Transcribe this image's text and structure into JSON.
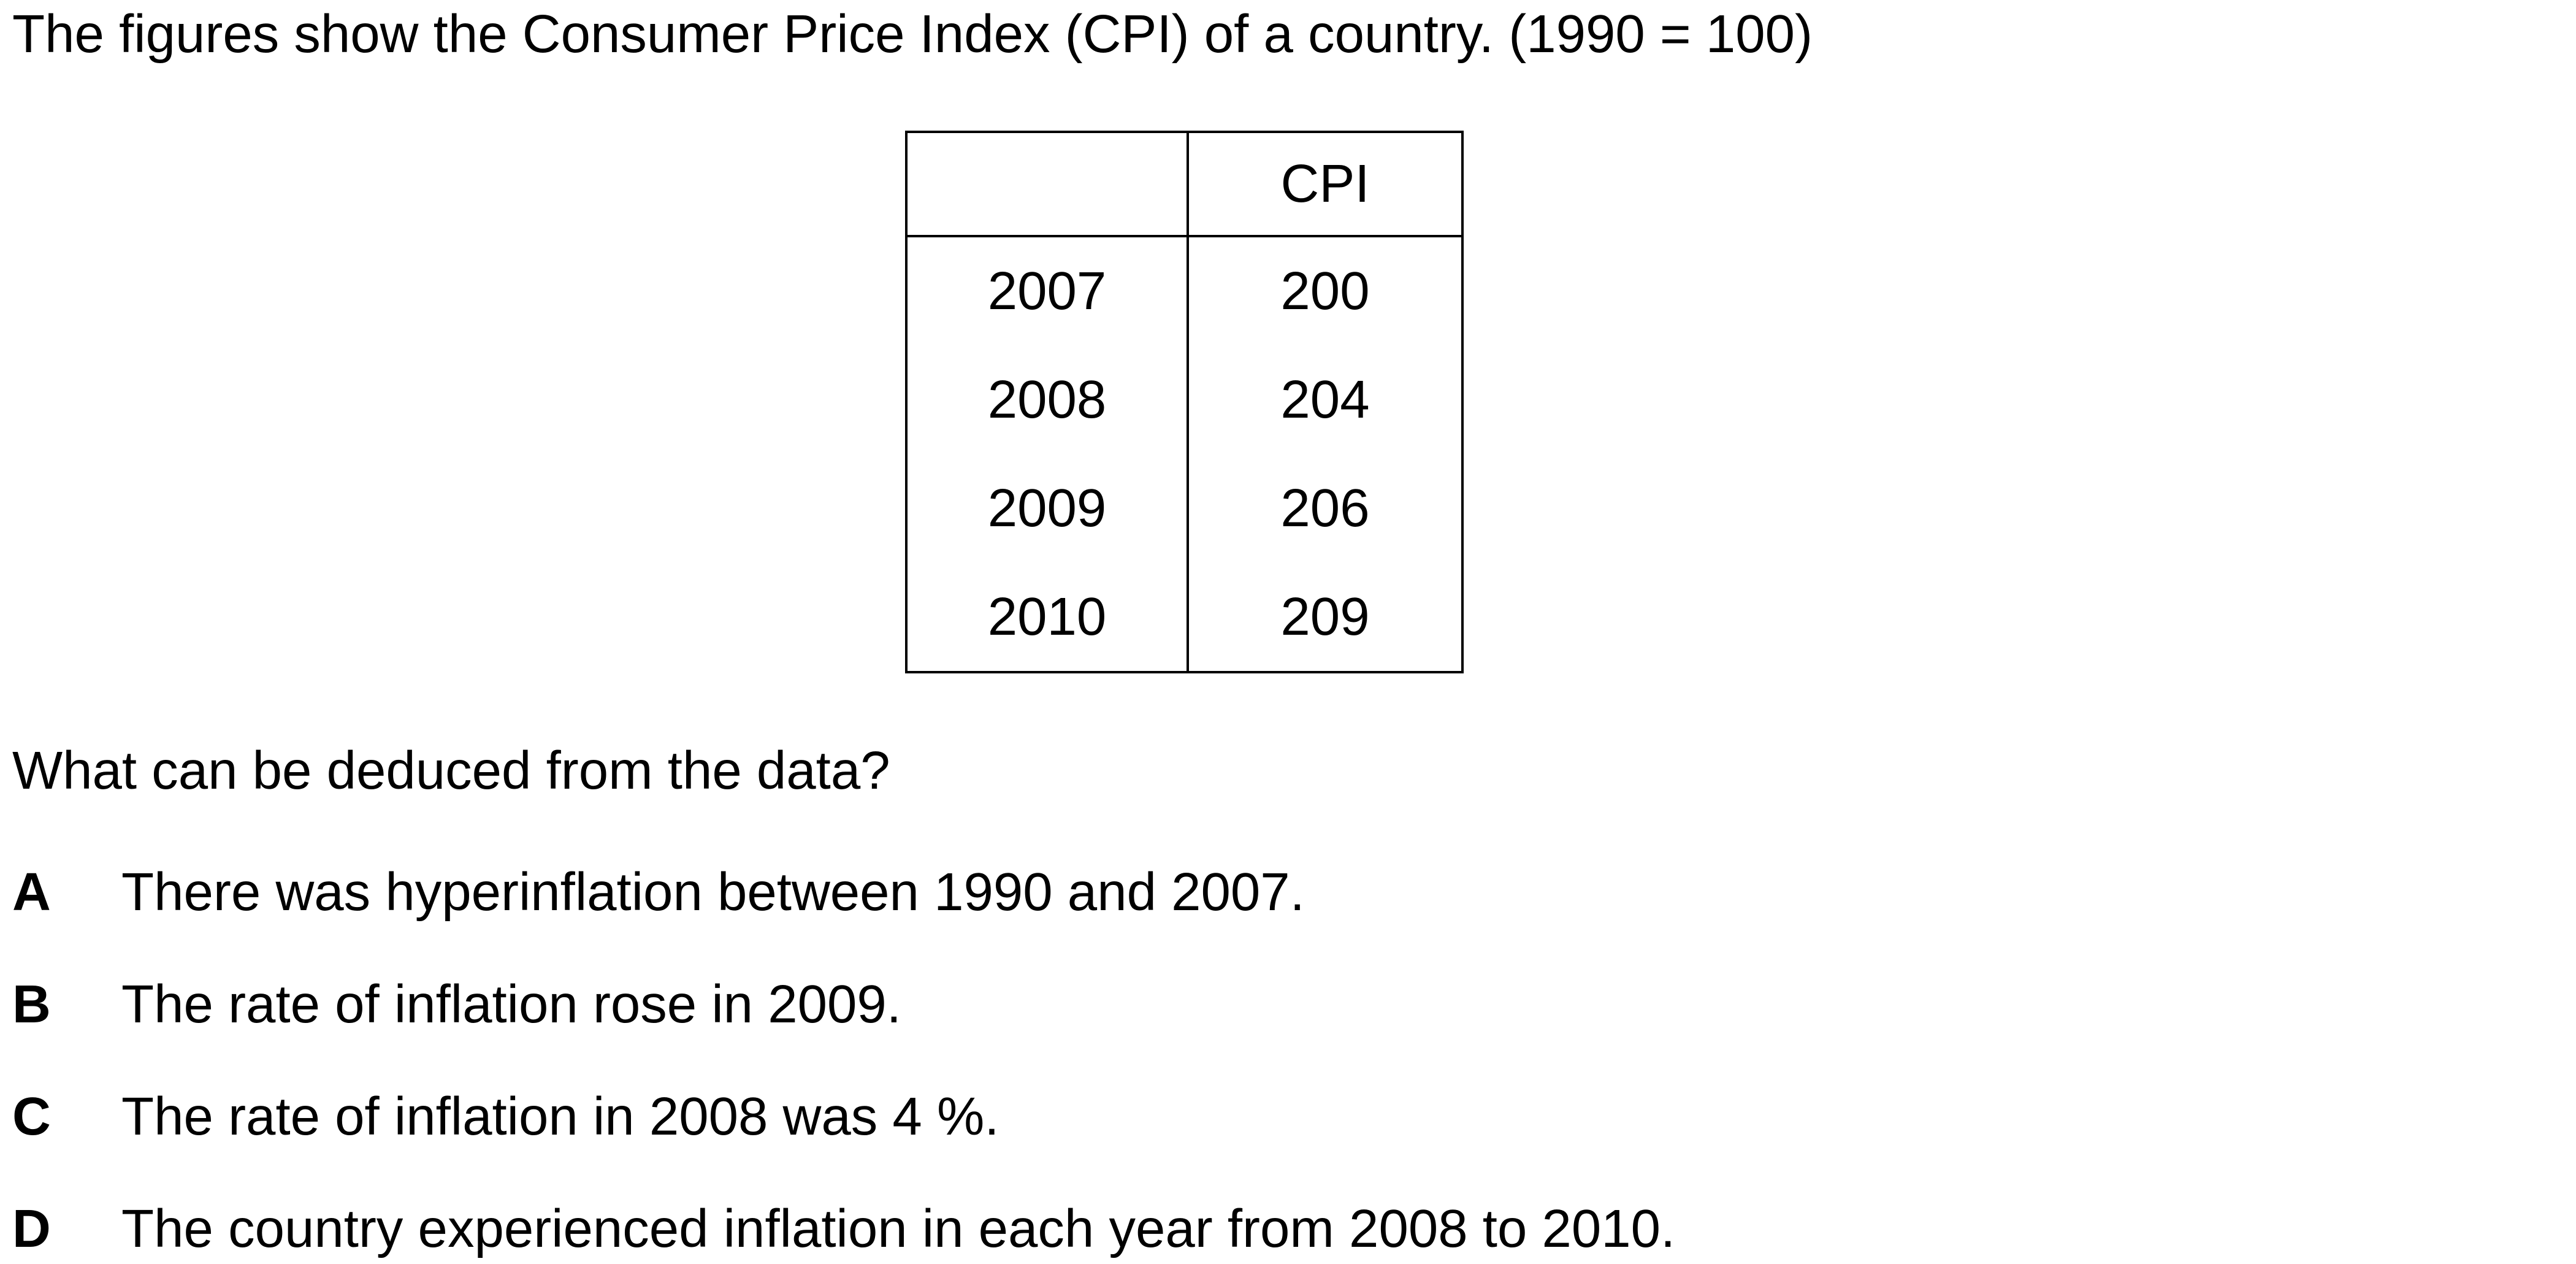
{
  "intro": "The figures show the Consumer Price Index (CPI) of a country. (1990 = 100)",
  "table": {
    "header": [
      "",
      "CPI"
    ],
    "rows": [
      {
        "year": "2007",
        "cpi": "200"
      },
      {
        "year": "2008",
        "cpi": "204"
      },
      {
        "year": "2009",
        "cpi": "206"
      },
      {
        "year": "2010",
        "cpi": "209"
      }
    ]
  },
  "question": "What can be deduced from the data?",
  "options": [
    {
      "letter": "A",
      "text": "There was hyperinflation between 1990 and 2007."
    },
    {
      "letter": "B",
      "text": "The rate of inflation rose in 2009."
    },
    {
      "letter": "C",
      "text": "The rate of inflation in 2008 was 4 %."
    },
    {
      "letter": "D",
      "text": "The country experienced inflation in each year from 2008 to 2010."
    }
  ]
}
